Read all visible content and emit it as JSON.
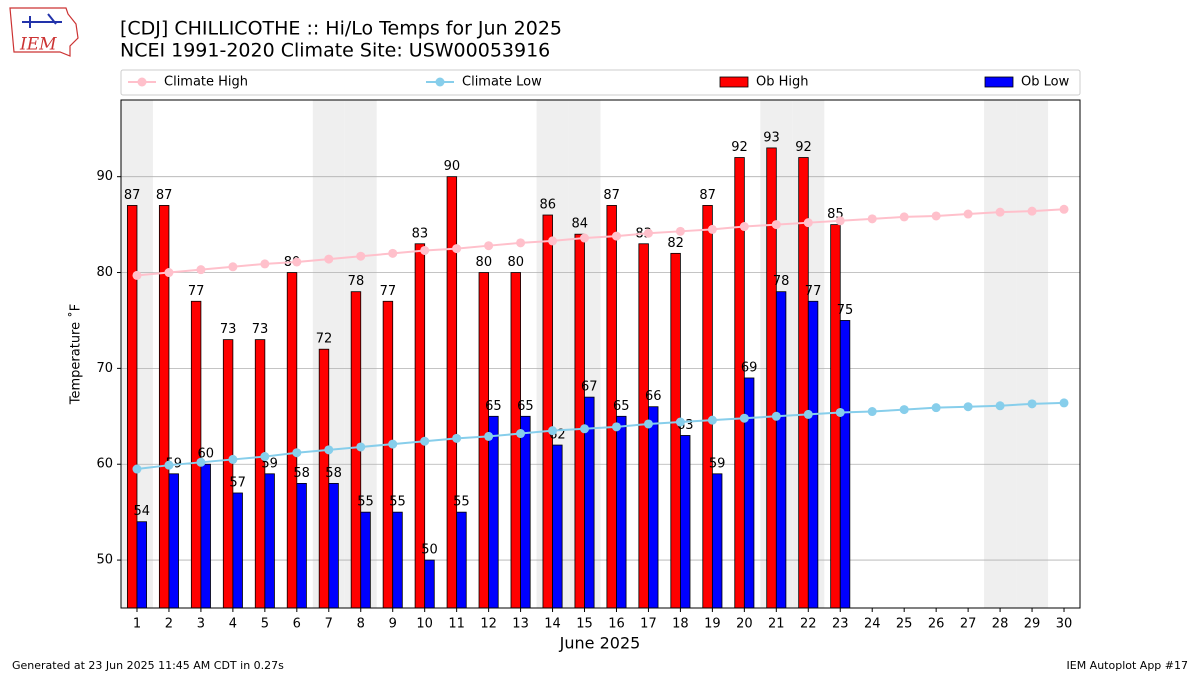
{
  "logo_text": "IEM",
  "footer_left": "Generated at 23 Jun 2025 11:45 AM CDT in 0.27s",
  "footer_right": "IEM Autoplot App #17",
  "chart_data": {
    "type": "bar",
    "title": "[CDJ] CHILLICOTHE :: Hi/Lo Temps for Jun 2025",
    "subtitle": "NCEI 1991-2020 Climate Site: USW00053916",
    "x_label": "June 2025",
    "y_label": "Temperature ˚F",
    "x": [
      1,
      2,
      3,
      4,
      5,
      6,
      7,
      8,
      9,
      10,
      11,
      12,
      13,
      14,
      15,
      16,
      17,
      18,
      19,
      20,
      21,
      22,
      23,
      24,
      25,
      26,
      27,
      28,
      29,
      30
    ],
    "xlim": [
      0.5,
      30.5
    ],
    "xticks": [
      1,
      2,
      3,
      4,
      5,
      6,
      7,
      8,
      9,
      10,
      11,
      12,
      13,
      14,
      15,
      16,
      17,
      18,
      19,
      20,
      21,
      22,
      23,
      24,
      25,
      26,
      27,
      28,
      29,
      30
    ],
    "ylim": [
      45,
      98
    ],
    "yticks": [
      50,
      60,
      70,
      80,
      90
    ],
    "grid": true,
    "shaded_days": [
      1,
      7,
      8,
      14,
      15,
      21,
      22,
      28,
      29
    ],
    "series": [
      {
        "name": "Climate High",
        "kind": "line",
        "color": "#ffc0cb",
        "values": [
          79.7,
          80.0,
          80.3,
          80.6,
          80.9,
          81.1,
          81.4,
          81.7,
          82.0,
          82.3,
          82.5,
          82.8,
          83.1,
          83.3,
          83.6,
          83.8,
          84.1,
          84.3,
          84.5,
          84.8,
          85.0,
          85.2,
          85.4,
          85.6,
          85.8,
          85.9,
          86.1,
          86.3,
          86.4,
          86.6
        ]
      },
      {
        "name": "Climate Low",
        "kind": "line",
        "color": "#87ceeb",
        "values": [
          59.5,
          59.9,
          60.2,
          60.5,
          60.8,
          61.2,
          61.5,
          61.8,
          62.1,
          62.4,
          62.7,
          62.9,
          63.2,
          63.5,
          63.7,
          63.9,
          64.2,
          64.4,
          64.6,
          64.8,
          65.0,
          65.2,
          65.4,
          65.5,
          65.7,
          65.9,
          66.0,
          66.1,
          66.3,
          66.4
        ]
      },
      {
        "name": "Ob High",
        "kind": "bar",
        "offset": -0.15,
        "color": "#ff0000",
        "values": [
          87,
          87,
          77,
          73,
          73,
          80,
          72,
          78,
          77,
          83,
          90,
          80,
          80,
          86,
          84,
          87,
          83,
          82,
          87,
          92,
          93,
          92,
          85,
          null,
          null,
          null,
          null,
          null,
          null,
          null
        ]
      },
      {
        "name": "Ob Low",
        "kind": "bar",
        "offset": 0.15,
        "color": "#0000ff",
        "values": [
          54,
          59,
          60,
          57,
          59,
          58,
          58,
          55,
          55,
          50,
          55,
          65,
          65,
          62,
          67,
          65,
          66,
          63,
          59,
          69,
          78,
          77,
          75,
          null,
          null,
          null,
          null,
          null,
          null,
          null
        ]
      }
    ]
  }
}
